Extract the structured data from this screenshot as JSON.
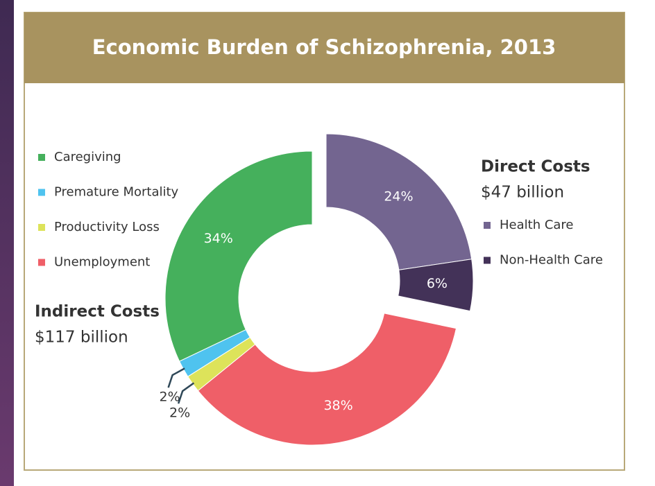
{
  "chart_data": {
    "type": "donut",
    "title": "Economic Burden of Schizophrenia, 2013",
    "groups": [
      {
        "name": "Direct Costs",
        "total": {
          "value": 47,
          "label": "$47 billion"
        },
        "categories": [
          "Health Care",
          "Non-Health Care"
        ],
        "values": [
          24,
          6
        ],
        "value_labels": [
          "24%",
          "6%"
        ],
        "colors": [
          "#736590",
          "#433258"
        ]
      },
      {
        "name": "Indirect Costs",
        "total": {
          "value": 117,
          "label": "$117 billion"
        },
        "categories": [
          "Caregiving",
          "Premature Mortality",
          "Productivity Loss",
          "Unemployment"
        ],
        "values": [
          34,
          2,
          2,
          38
        ],
        "value_labels": [
          "34%",
          "2%",
          "2%",
          "38%"
        ],
        "colors": [
          "#45b05c",
          "#4fc3ef",
          "#dde35a",
          "#ef5f68"
        ]
      }
    ]
  }
}
